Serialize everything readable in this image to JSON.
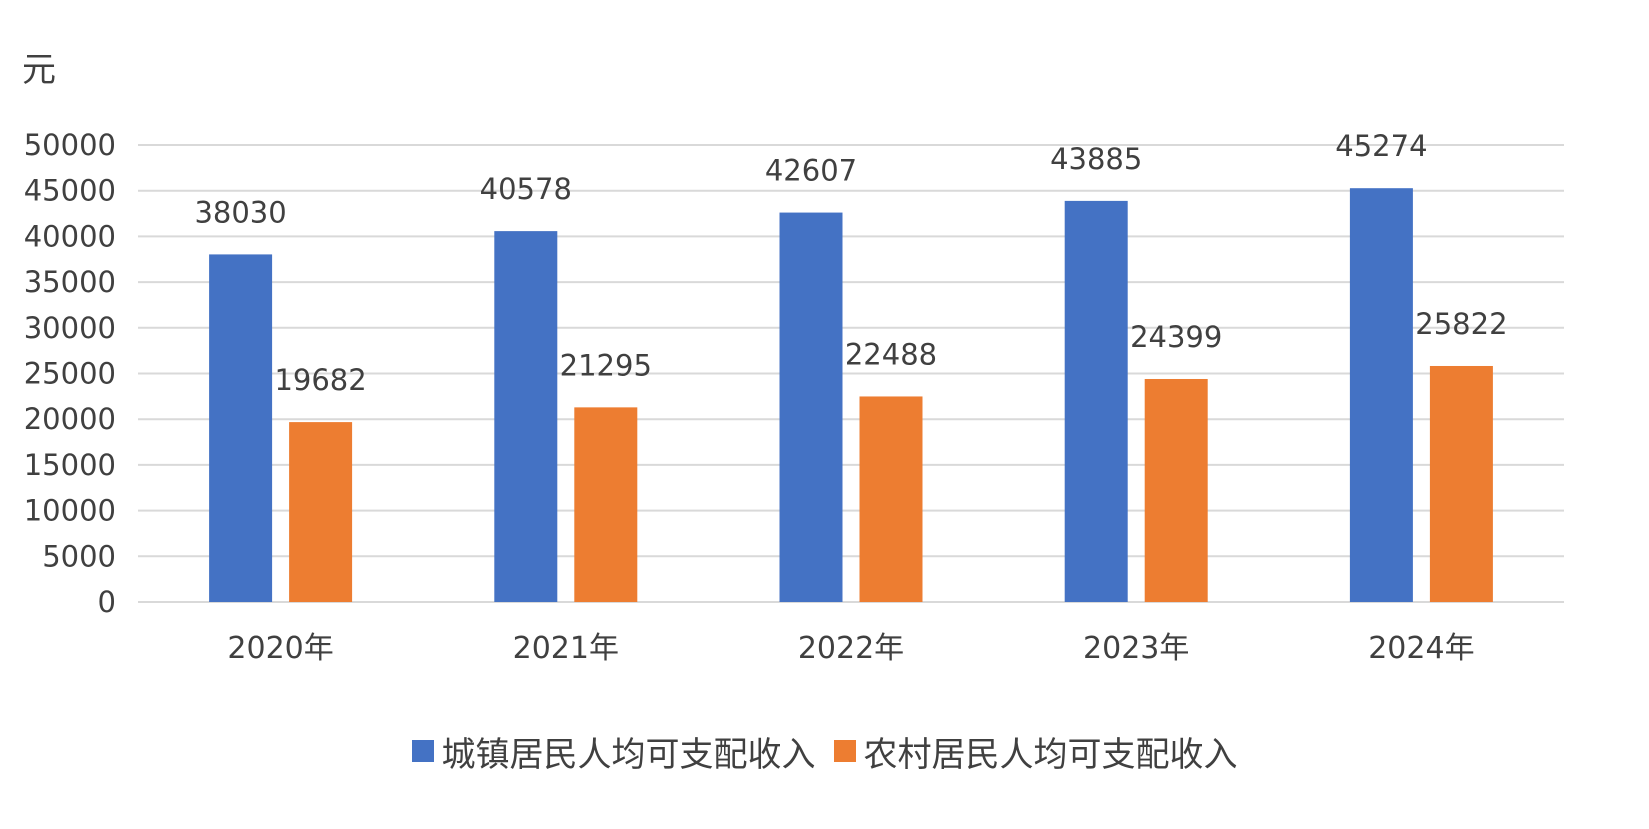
{
  "colors": {
    "urban": "#4472C4",
    "rural": "#ED7D31",
    "grid": "#D9D9D9",
    "text": "#404040"
  },
  "chart_data": {
    "type": "bar",
    "unit_label": "元",
    "categories": [
      "2020年",
      "2021年",
      "2022年",
      "2023年",
      "2024年"
    ],
    "series": [
      {
        "name": "城镇居民人均可支配收入",
        "values": [
          38030,
          40578,
          42607,
          43885,
          45274
        ]
      },
      {
        "name": "农村居民人均可支配收入",
        "values": [
          19682,
          21295,
          22488,
          24399,
          25822
        ]
      }
    ],
    "ylim": [
      0,
      50000
    ],
    "yticks": [
      0,
      5000,
      10000,
      15000,
      20000,
      25000,
      30000,
      35000,
      40000,
      45000,
      50000
    ],
    "grid": true,
    "data_labels": true,
    "legend_position": "bottom"
  }
}
